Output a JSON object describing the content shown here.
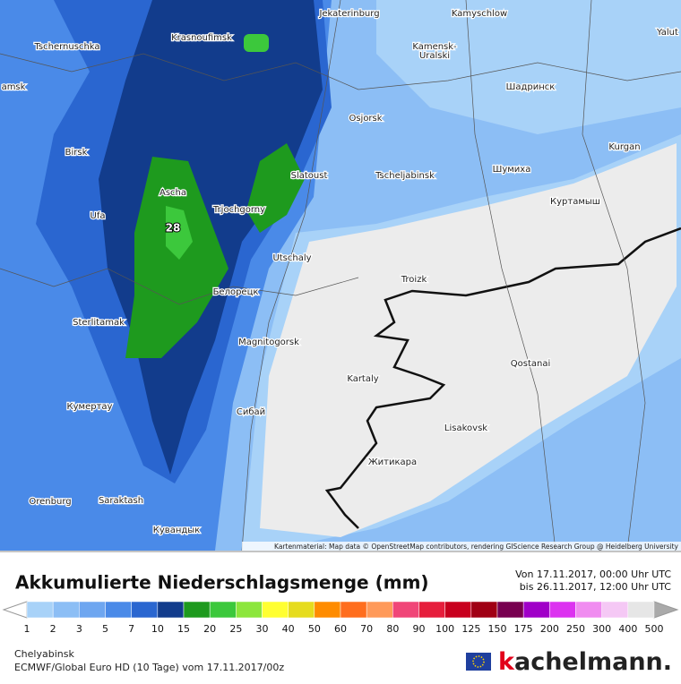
{
  "map": {
    "cities": [
      "Jekaterinburg",
      "Kamyschlow",
      "Tschernuschka",
      "Krasnoufimsk",
      "Kamensk-",
      "Uralski",
      "Шадринск",
      "amsk",
      "Osjorsk",
      "Birsk",
      "Kurgan",
      "Slatoust",
      "Tscheljabinsk",
      "Шумиха",
      "Ascha",
      "Ufa",
      "Trjochgorny",
      "Куртамыш",
      "Utschaly",
      "Troizk",
      "Белорецк",
      "Sterlitamak",
      "Magnitogorsk",
      "Qostanai",
      "Kartaly",
      "Кумертау",
      "Сибай",
      "Lisakovsk",
      "Житикара",
      "Orenburg",
      "Saraktash",
      "Кувандык",
      "Yalut"
    ],
    "max_label": "28",
    "attribution": "Kartenmaterial: Map data © OpenStreetMap contributors, rendering GIScience Research Group @ Heidelberg University"
  },
  "legend": {
    "title": "Akkumulierte Niederschlagsmenge (mm)",
    "from": "Von 17.11.2017, 00:00 Uhr UTC",
    "to": "bis 26.11.2017, 12:00 Uhr UTC",
    "ticks": [
      1,
      2,
      3,
      5,
      7,
      10,
      15,
      20,
      25,
      30,
      40,
      50,
      60,
      70,
      80,
      90,
      100,
      125,
      150,
      175,
      200,
      250,
      300,
      400,
      500
    ],
    "colors": [
      "#a8d2f8",
      "#8cbef5",
      "#6ea6f0",
      "#4a8ae8",
      "#2a66d0",
      "#123c8c",
      "#1e9a1e",
      "#3cc83c",
      "#8ce63c",
      "#ffff32",
      "#e6dc1e",
      "#ff8c00",
      "#ff6e1e",
      "#ff9a5a",
      "#f04678",
      "#e61e3c",
      "#c8001e",
      "#a00014",
      "#780050",
      "#a000c8",
      "#dc32f0",
      "#f08cf0",
      "#f5c8f5",
      "#e6e6e6"
    ],
    "low_color": "#ffffff",
    "high_color": "#aaaaaa"
  },
  "footer": {
    "location": "Chelyabinsk",
    "model": "ECMWF/Global Euro HD (10 Tage) vom 17.11.2017/00z",
    "brand_prefix": "k",
    "brand_rest": "achelmann."
  }
}
